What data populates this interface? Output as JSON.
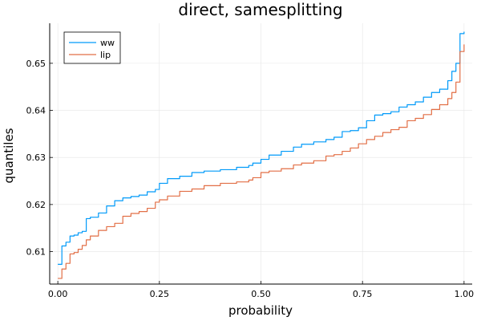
{
  "chart_data": {
    "type": "line",
    "title": "direct, samesplitting",
    "xlabel": "probability",
    "ylabel": "quantiles",
    "xlim": [
      -0.02,
      1.02
    ],
    "ylim": [
      0.6031,
      0.6585
    ],
    "x_ticks": [
      0.0,
      0.25,
      0.5,
      0.75,
      1.0
    ],
    "x_tick_labels": [
      "0.00",
      "0.25",
      "0.50",
      "0.75",
      "1.00"
    ],
    "y_ticks": [
      0.61,
      0.62,
      0.63,
      0.64,
      0.65
    ],
    "y_tick_labels": [
      "0.61",
      "0.62",
      "0.63",
      "0.64",
      "0.65"
    ],
    "grid": true,
    "legend_position": "top-left",
    "series": [
      {
        "name": "ww",
        "color": "#009af9",
        "x": [
          0.0,
          0.01,
          0.02,
          0.03,
          0.04,
          0.05,
          0.06,
          0.07,
          0.08,
          0.1,
          0.12,
          0.14,
          0.16,
          0.18,
          0.2,
          0.22,
          0.24,
          0.25,
          0.27,
          0.3,
          0.33,
          0.36,
          0.4,
          0.44,
          0.47,
          0.48,
          0.5,
          0.52,
          0.55,
          0.58,
          0.6,
          0.63,
          0.66,
          0.68,
          0.7,
          0.72,
          0.74,
          0.76,
          0.78,
          0.8,
          0.82,
          0.84,
          0.86,
          0.88,
          0.9,
          0.92,
          0.94,
          0.96,
          0.97,
          0.98,
          0.99,
          1.0
        ],
        "y": [
          0.6073,
          0.6112,
          0.612,
          0.6133,
          0.6135,
          0.614,
          0.6143,
          0.617,
          0.6173,
          0.6182,
          0.6197,
          0.6208,
          0.6214,
          0.6217,
          0.622,
          0.6227,
          0.6232,
          0.6245,
          0.6255,
          0.626,
          0.6268,
          0.6271,
          0.6274,
          0.6279,
          0.6283,
          0.6288,
          0.6296,
          0.6305,
          0.6313,
          0.6322,
          0.6328,
          0.6333,
          0.6338,
          0.6343,
          0.6355,
          0.6357,
          0.6363,
          0.6378,
          0.639,
          0.6393,
          0.6397,
          0.6407,
          0.6412,
          0.6418,
          0.6428,
          0.6438,
          0.6445,
          0.6463,
          0.6483,
          0.65,
          0.6563,
          0.6567
        ]
      },
      {
        "name": "lip",
        "color": "#e26f46",
        "x": [
          0.0,
          0.01,
          0.02,
          0.03,
          0.04,
          0.05,
          0.06,
          0.07,
          0.08,
          0.1,
          0.12,
          0.14,
          0.16,
          0.18,
          0.2,
          0.22,
          0.24,
          0.25,
          0.27,
          0.3,
          0.33,
          0.36,
          0.4,
          0.44,
          0.47,
          0.48,
          0.5,
          0.52,
          0.55,
          0.58,
          0.6,
          0.63,
          0.66,
          0.68,
          0.7,
          0.72,
          0.74,
          0.76,
          0.78,
          0.8,
          0.82,
          0.84,
          0.86,
          0.88,
          0.9,
          0.92,
          0.94,
          0.96,
          0.97,
          0.98,
          0.99,
          1.0
        ],
        "y": [
          0.6043,
          0.6063,
          0.6075,
          0.6095,
          0.6098,
          0.6105,
          0.6113,
          0.6125,
          0.6133,
          0.6145,
          0.6153,
          0.616,
          0.6175,
          0.6181,
          0.6185,
          0.6192,
          0.6205,
          0.621,
          0.6218,
          0.6228,
          0.6233,
          0.624,
          0.6245,
          0.6248,
          0.6252,
          0.6257,
          0.6268,
          0.6271,
          0.6276,
          0.6284,
          0.6288,
          0.6293,
          0.6303,
          0.6306,
          0.6313,
          0.632,
          0.6329,
          0.6338,
          0.6345,
          0.6353,
          0.6359,
          0.6364,
          0.6378,
          0.6383,
          0.6391,
          0.6402,
          0.6412,
          0.6425,
          0.6438,
          0.646,
          0.6525,
          0.654
        ]
      }
    ]
  }
}
